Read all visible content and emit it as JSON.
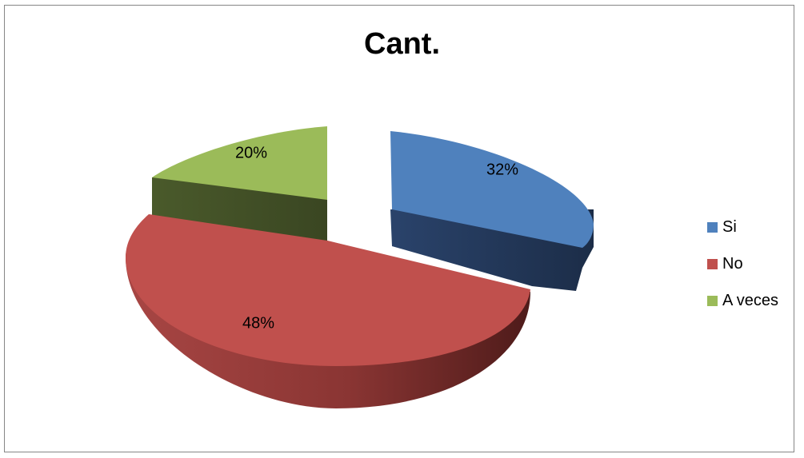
{
  "chart_data": {
    "type": "pie",
    "title": "Cant.",
    "categories": [
      "Si",
      "No",
      "A veces"
    ],
    "values": [
      32,
      48,
      20
    ],
    "labels": [
      "32%",
      "48%",
      "20%"
    ],
    "colors": [
      "#4F81BD",
      "#C0504D",
      "#9BBB59"
    ],
    "side_colors": [
      "#1F3150",
      "#5A1F1E",
      "#3F4B23"
    ],
    "exploded": [
      true,
      false,
      true
    ],
    "legend_placement": "right",
    "style": "3d"
  }
}
